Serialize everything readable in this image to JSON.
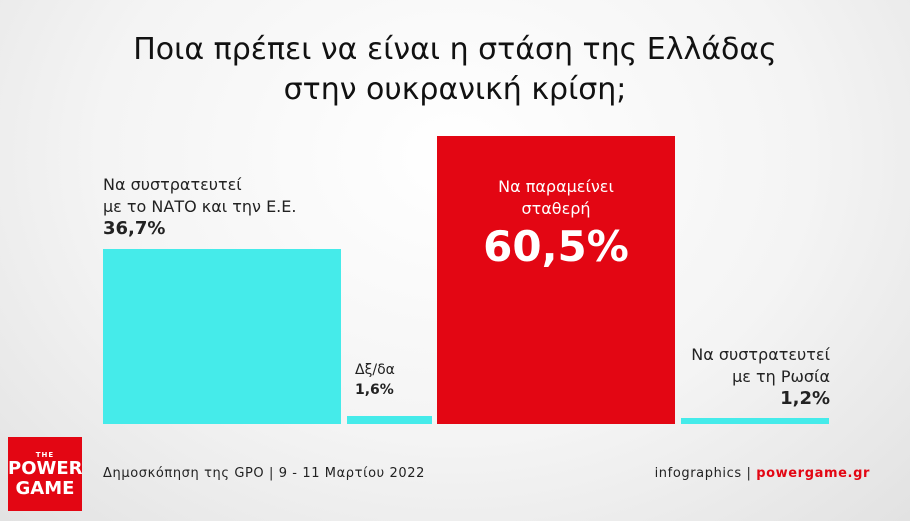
{
  "title_line1": "Ποια πρέπει να είναι η στάση της Ελλάδας",
  "title_line2": "στην ουκρανική κρίση;",
  "colors": {
    "cyan": "#45ebea",
    "red": "#e30613",
    "accent": "#e30613"
  },
  "chart_data": {
    "type": "bar",
    "categories": [
      "Να συστρατευτεί με το ΝΑΤΟ και την Ε.Ε.",
      "Δξ/δα",
      "Να παραμείνει σταθερή",
      "Να συστρατευτεί με τη Ρωσία"
    ],
    "values": [
      36.7,
      1.6,
      60.5,
      1.2
    ],
    "value_labels": [
      "36,7%",
      "1,6%",
      "60,5%",
      "1,2%"
    ],
    "title": "Ποια πρέπει να είναι η στάση της Ελλάδας στην ουκρανική κρίση;",
    "xlabel": "",
    "ylabel": "",
    "ylim": [
      0,
      60.5
    ],
    "grid": false
  },
  "bars": [
    {
      "line1": "Να συστρατευτεί",
      "line2": "με το ΝΑΤΟ και την Ε.Ε.",
      "value": "36,7%"
    },
    {
      "line1": "Δξ/δα",
      "value": "1,6%"
    },
    {
      "line1": "Να παραμείνει",
      "line2": "σταθερή",
      "value": "60,5%"
    },
    {
      "line1": "Να συστρατευτεί",
      "line2": "με τη Ρωσία",
      "value": "1,2%"
    }
  ],
  "footer": {
    "source": "Δημοσκόπηση της GPO | 9 - 11 Μαρτίου 2022",
    "credit_prefix": "infographics | ",
    "credit_site": "powergame.gr"
  },
  "logo": {
    "the": "THE",
    "line1": "POWER",
    "line2": "GAME"
  }
}
